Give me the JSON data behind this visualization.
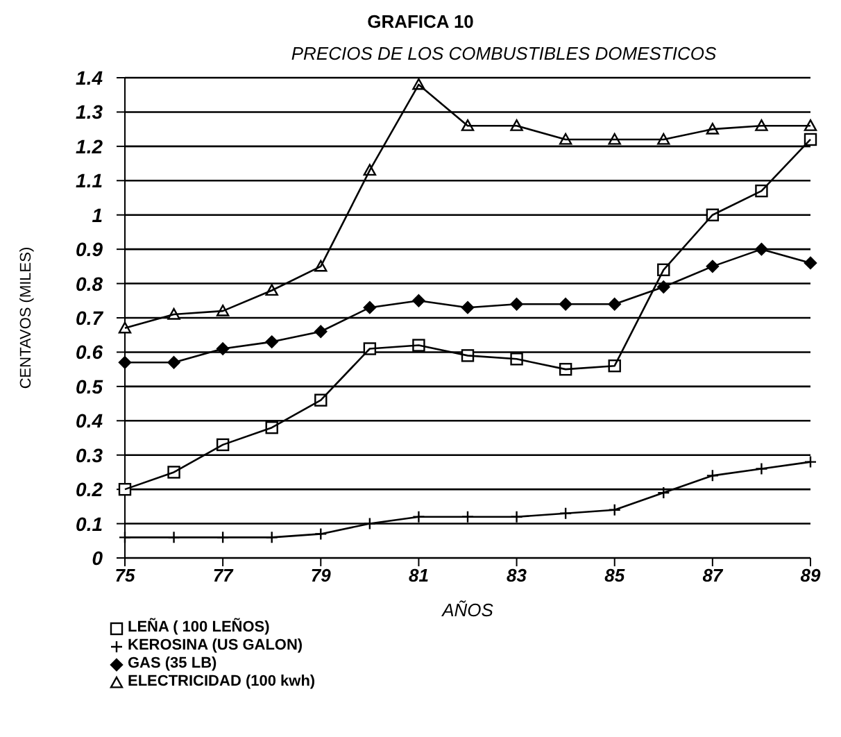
{
  "chart_data": {
    "type": "line",
    "title": "GRAFICA 10",
    "subtitle": "PRECIOS DE LOS COMBUSTIBLES DOMESTICOS",
    "xlabel": "AÑOS",
    "ylabel": "CENTAVOS (MILES)",
    "x": [
      75,
      76,
      77,
      78,
      79,
      80,
      81,
      82,
      83,
      84,
      85,
      86,
      87,
      88,
      89
    ],
    "series": [
      {
        "name": "LEÑA ( 100 LEÑOS)",
        "color": "#000000",
        "marker": "square",
        "values": [
          0.2,
          0.25,
          0.33,
          0.38,
          0.46,
          0.61,
          0.62,
          0.59,
          0.58,
          0.55,
          0.56,
          0.84,
          1.0,
          1.07,
          1.22
        ]
      },
      {
        "name": "KEROSINA (US GALON)",
        "color": "#000000",
        "marker": "cross",
        "values": [
          0.06,
          0.06,
          0.06,
          0.06,
          0.07,
          0.1,
          0.12,
          0.12,
          0.12,
          0.13,
          0.14,
          0.19,
          0.24,
          0.26,
          0.28
        ]
      },
      {
        "name": "GAS (35 LB)",
        "color": "#000000",
        "marker": "diamond",
        "values": [
          0.57,
          0.57,
          0.61,
          0.63,
          0.66,
          0.73,
          0.75,
          0.73,
          0.74,
          0.74,
          0.74,
          0.79,
          0.85,
          0.9,
          0.86
        ]
      },
      {
        "name": "ELECTRICIDAD (100 kwh)",
        "color": "#000000",
        "marker": "triangle",
        "values": [
          0.67,
          0.71,
          0.72,
          0.78,
          0.85,
          1.13,
          1.38,
          1.26,
          1.26,
          1.22,
          1.22,
          1.22,
          1.25,
          1.26,
          1.26
        ]
      }
    ],
    "xlim": [
      75,
      89
    ],
    "xticks": [
      75,
      77,
      79,
      81,
      83,
      85,
      87,
      89
    ],
    "ylim": [
      0,
      1.4
    ],
    "yticks": [
      0,
      0.1,
      0.2,
      0.3,
      0.4,
      0.5,
      0.6,
      0.7,
      0.8,
      0.9,
      1,
      1.1,
      1.2,
      1.3,
      1.4
    ],
    "grid": "y",
    "legend": "bottom left",
    "line_style": "solid"
  }
}
